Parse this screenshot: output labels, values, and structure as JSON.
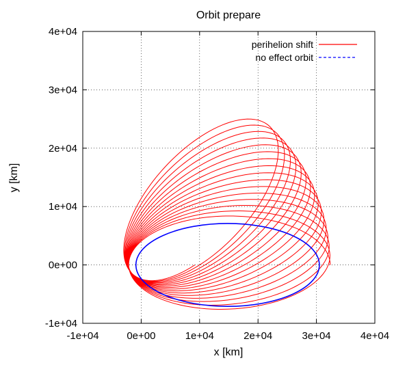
{
  "chart_data": {
    "type": "line",
    "title": "Orbit prepare",
    "xlabel": "x [km]",
    "ylabel": "y [km]",
    "xlim": [
      -10000,
      40000
    ],
    "ylim": [
      -10000,
      40000
    ],
    "x_ticks": [
      -10000,
      0,
      10000,
      20000,
      30000,
      40000
    ],
    "y_ticks": [
      -10000,
      0,
      10000,
      20000,
      30000,
      40000
    ],
    "x_tick_labels": [
      "-1e+04",
      "0e+00",
      "1e+04",
      "2e+04",
      "3e+04",
      "4e+04"
    ],
    "y_tick_labels": [
      "-1e+04",
      "0e+00",
      "1e+04",
      "2e+04",
      "3e+04",
      "4e+04"
    ],
    "grid": true,
    "legend_position": "top-right",
    "series": [
      {
        "name": "perihelion shift",
        "color": "#ff0000",
        "style": "solid",
        "orbit": {
          "semi_major_axis": 17250,
          "eccentricity": 0.876,
          "focus": [
            0,
            0
          ],
          "periapsis_angle_start_deg": 180,
          "periapsis_angle_end_deg": 230,
          "revolutions": 16
        }
      },
      {
        "name": "no effect orbit",
        "color": "#0000ff",
        "style": "dashed",
        "orbit": {
          "center": [
            14800,
            0
          ],
          "semi_major_axis": 15700,
          "semi_minor_axis": 7100
        }
      }
    ]
  }
}
